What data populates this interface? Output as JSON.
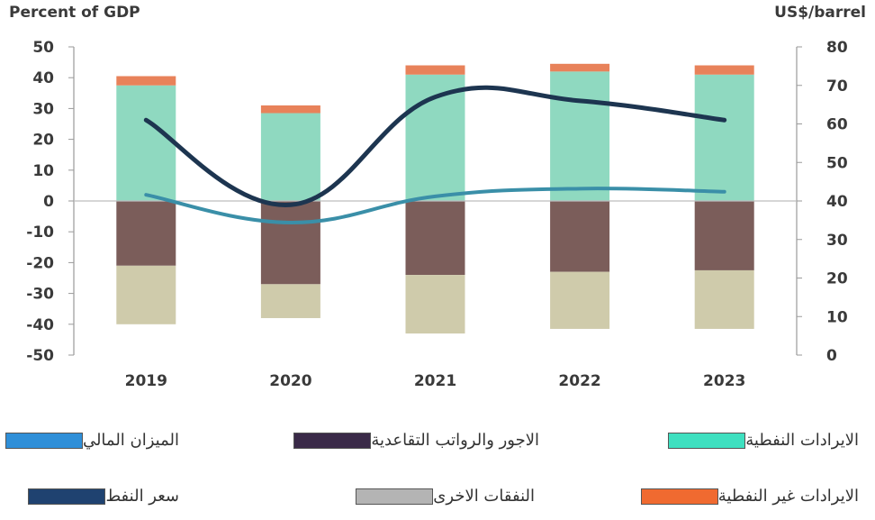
{
  "chart_data": {
    "type": "bar",
    "categories": [
      "2019",
      "2020",
      "2021",
      "2022",
      "2023"
    ],
    "left_axis": {
      "label": "Percent of GDP",
      "ylim": [
        -50,
        50
      ],
      "ticks": [
        "50",
        "40",
        "30",
        "20",
        "10",
        "0",
        "-10",
        "-20",
        "-30",
        "-40",
        "-50"
      ]
    },
    "right_axis": {
      "label": "US$/barrel",
      "ylim": [
        0,
        80
      ],
      "ticks": [
        "80",
        "70",
        "60",
        "50",
        "40",
        "30",
        "20",
        "10",
        "0"
      ]
    },
    "stacked_positive": [
      {
        "name": "الايرادات النفطية",
        "color": "#8fd9c0",
        "values": [
          37.5,
          28.5,
          41,
          42,
          41
        ]
      },
      {
        "name": "الايرادات غير النفطية",
        "color": "#e8825a",
        "values": [
          3,
          2.5,
          3,
          2.5,
          3
        ]
      }
    ],
    "stacked_negative": [
      {
        "name": "الاجور والرواتب التقاعدية",
        "color": "#7b5d5a",
        "values": [
          -21,
          -27,
          -24,
          -23,
          -22.5
        ]
      },
      {
        "name": "النفقات الاخرى",
        "color": "#cfcbab",
        "values": [
          -19,
          -11,
          -19,
          -18.5,
          -19
        ]
      }
    ],
    "lines": [
      {
        "name": "سعر النفط",
        "axis": "right",
        "color": "#1d3550",
        "values": [
          61,
          39,
          67,
          66,
          61
        ]
      },
      {
        "name": "الميزان المالي",
        "axis": "left",
        "color": "#3a8fa8",
        "values": [
          2,
          -7,
          1.5,
          4,
          3
        ]
      }
    ],
    "grid": false,
    "legend_position": "bottom"
  },
  "legend": [
    {
      "label": "الايرادات النفطية",
      "color": "#3ee0c0"
    },
    {
      "label": "الاجور والرواتب التقاعدية",
      "color": "#3a2a48"
    },
    {
      "label": "الميزان المالي",
      "color": "#2f8fd8"
    },
    {
      "label": "الايرادات غير النفطية",
      "color": "#f06a30"
    },
    {
      "label": "النفقات الاخرى",
      "color": "#b4b4b4"
    },
    {
      "label": "سعر النفط",
      "color": "#1f4270"
    }
  ]
}
